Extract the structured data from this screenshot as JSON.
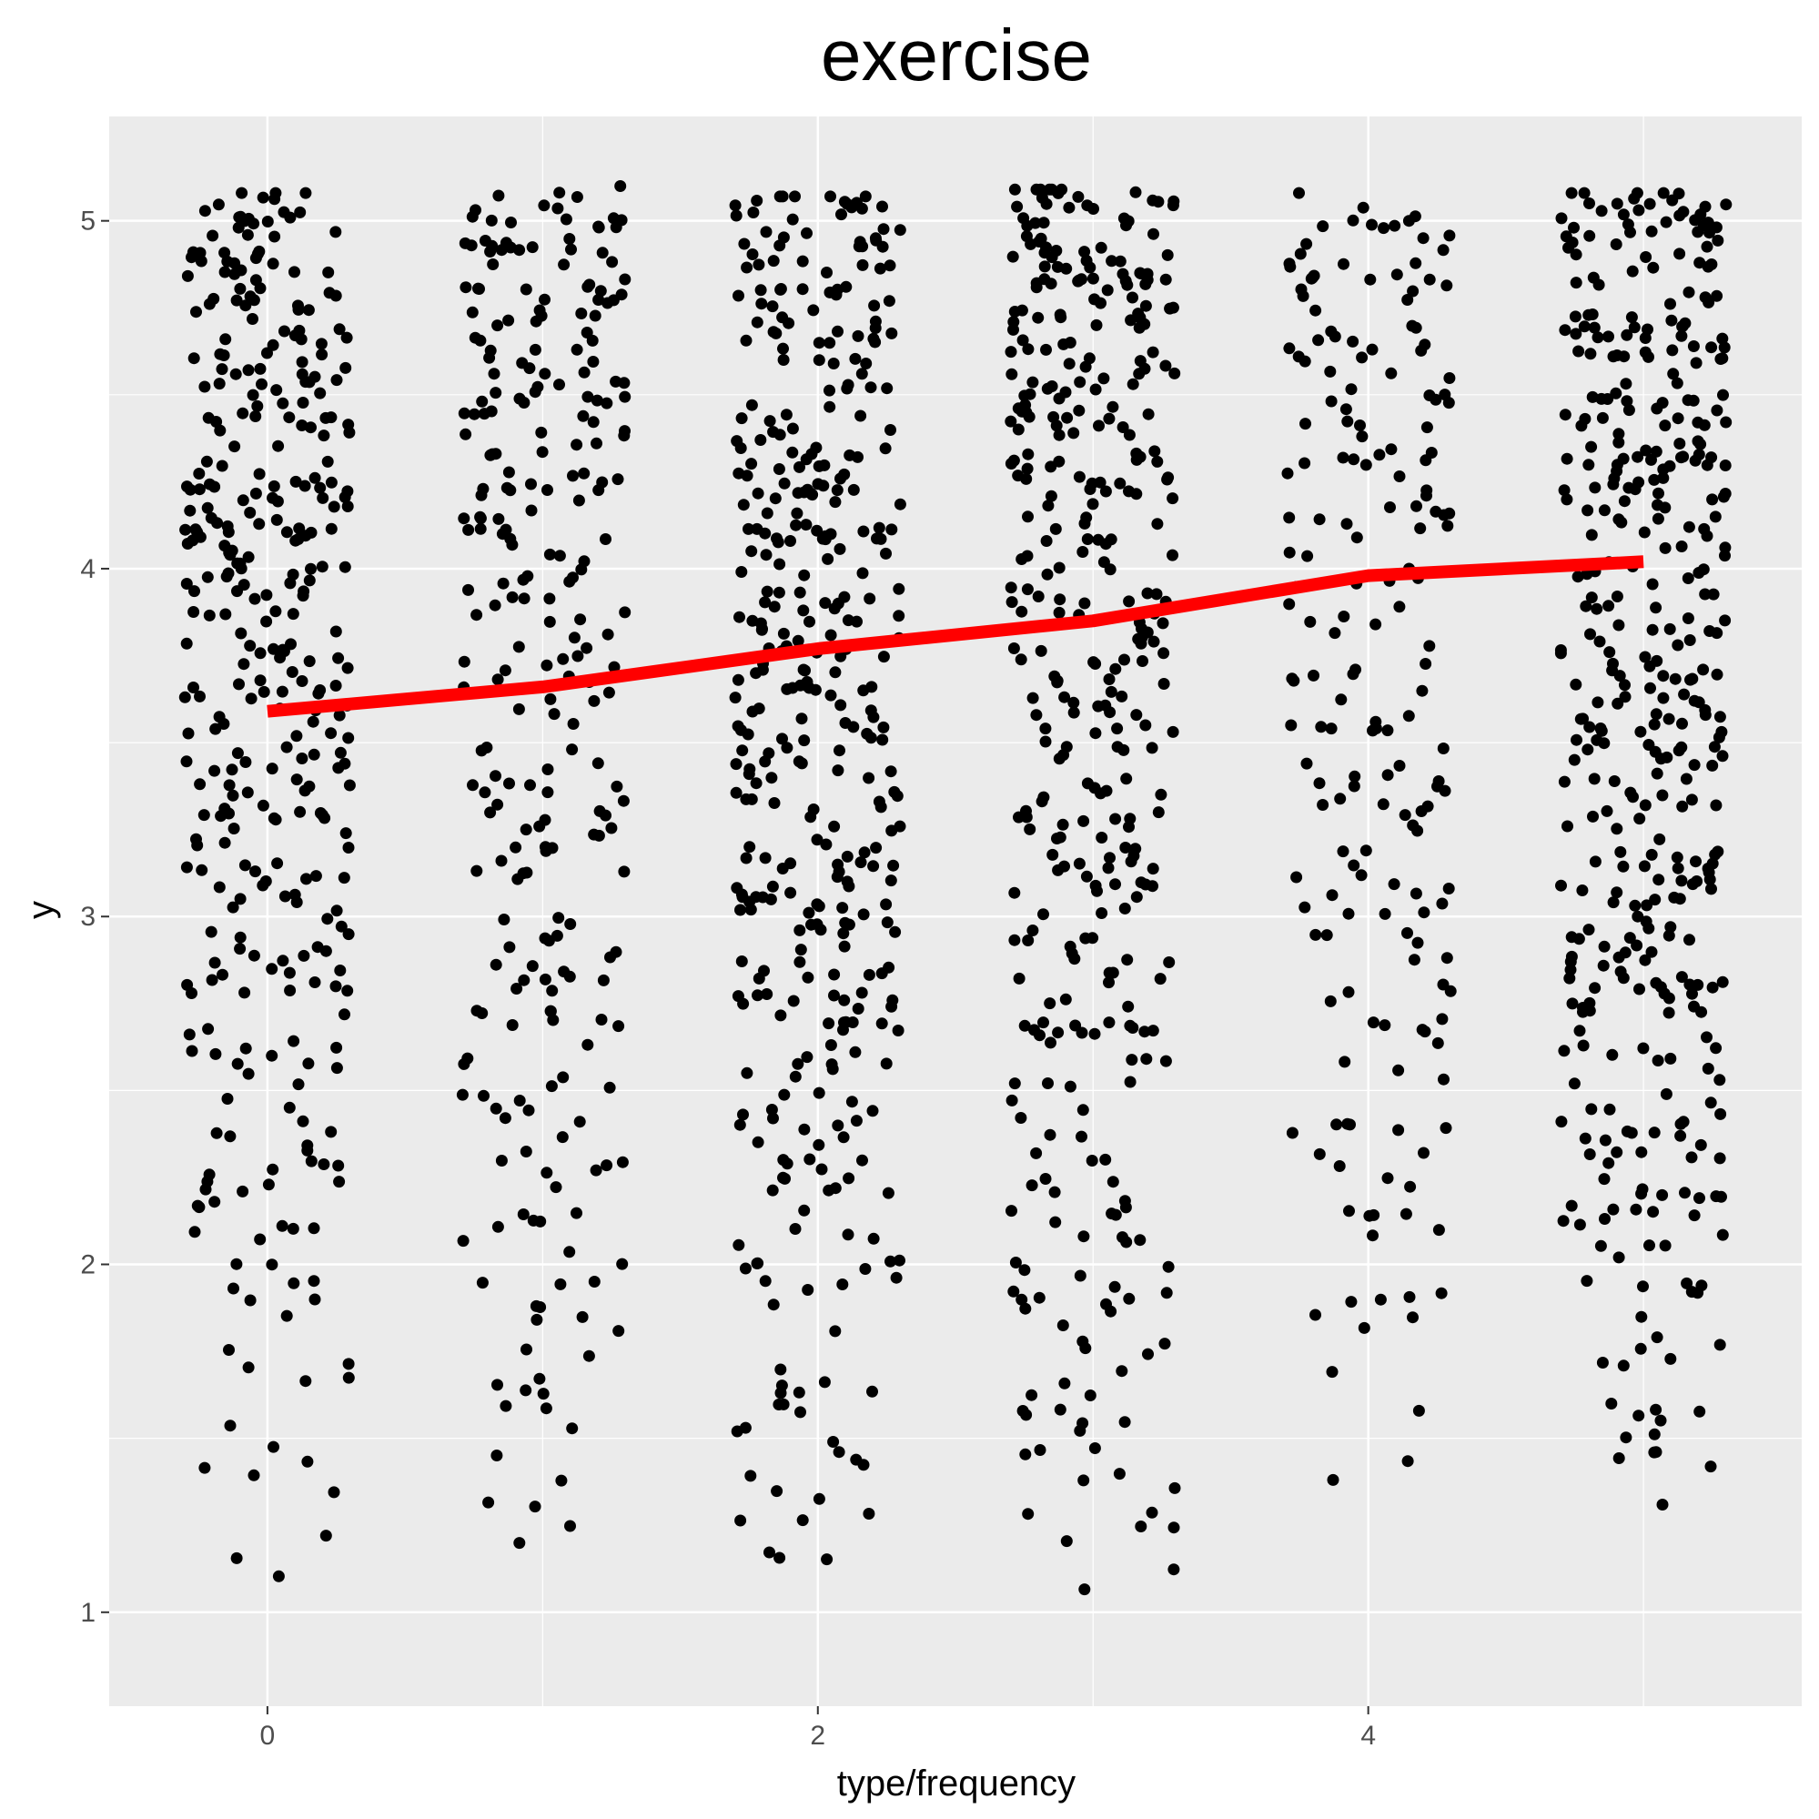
{
  "chart_data": {
    "type": "scatter",
    "title": "exercise",
    "xlabel": "type/frequency",
    "ylabel": "y",
    "xlim": [
      -0.575,
      5.575
    ],
    "ylim": [
      0.73,
      5.3
    ],
    "x_ticks": [
      0,
      2,
      4
    ],
    "y_ticks": [
      1,
      2,
      3,
      4,
      5
    ],
    "grid": true,
    "legend": "none",
    "jitter_width": 0.3,
    "colors": {
      "points": "#000000",
      "trend": "#ff0000",
      "panel": "#ebebeb",
      "grid": "#ffffff"
    },
    "groups": [
      {
        "x": 0,
        "n": 360,
        "values_min": 0.95,
        "values_max": 5.08,
        "median": 3.7
      },
      {
        "x": 1,
        "n": 270,
        "values_min": 1.0,
        "values_max": 5.1,
        "median": 3.75
      },
      {
        "x": 2,
        "n": 400,
        "values_min": 0.96,
        "values_max": 5.07,
        "median": 3.9
      },
      {
        "x": 3,
        "n": 380,
        "values_min": 0.94,
        "values_max": 5.09,
        "median": 3.95
      },
      {
        "x": 4,
        "n": 190,
        "values_min": 1.24,
        "values_max": 5.08,
        "median": 4.1
      },
      {
        "x": 5,
        "n": 420,
        "values_min": 1.12,
        "values_max": 5.08,
        "median": 4.15
      }
    ],
    "series": [
      {
        "type": "line",
        "x": [
          0,
          1,
          2,
          3,
          4,
          5
        ],
        "y": [
          3.59,
          3.66,
          3.77,
          3.85,
          3.98,
          4.02
        ]
      }
    ]
  }
}
